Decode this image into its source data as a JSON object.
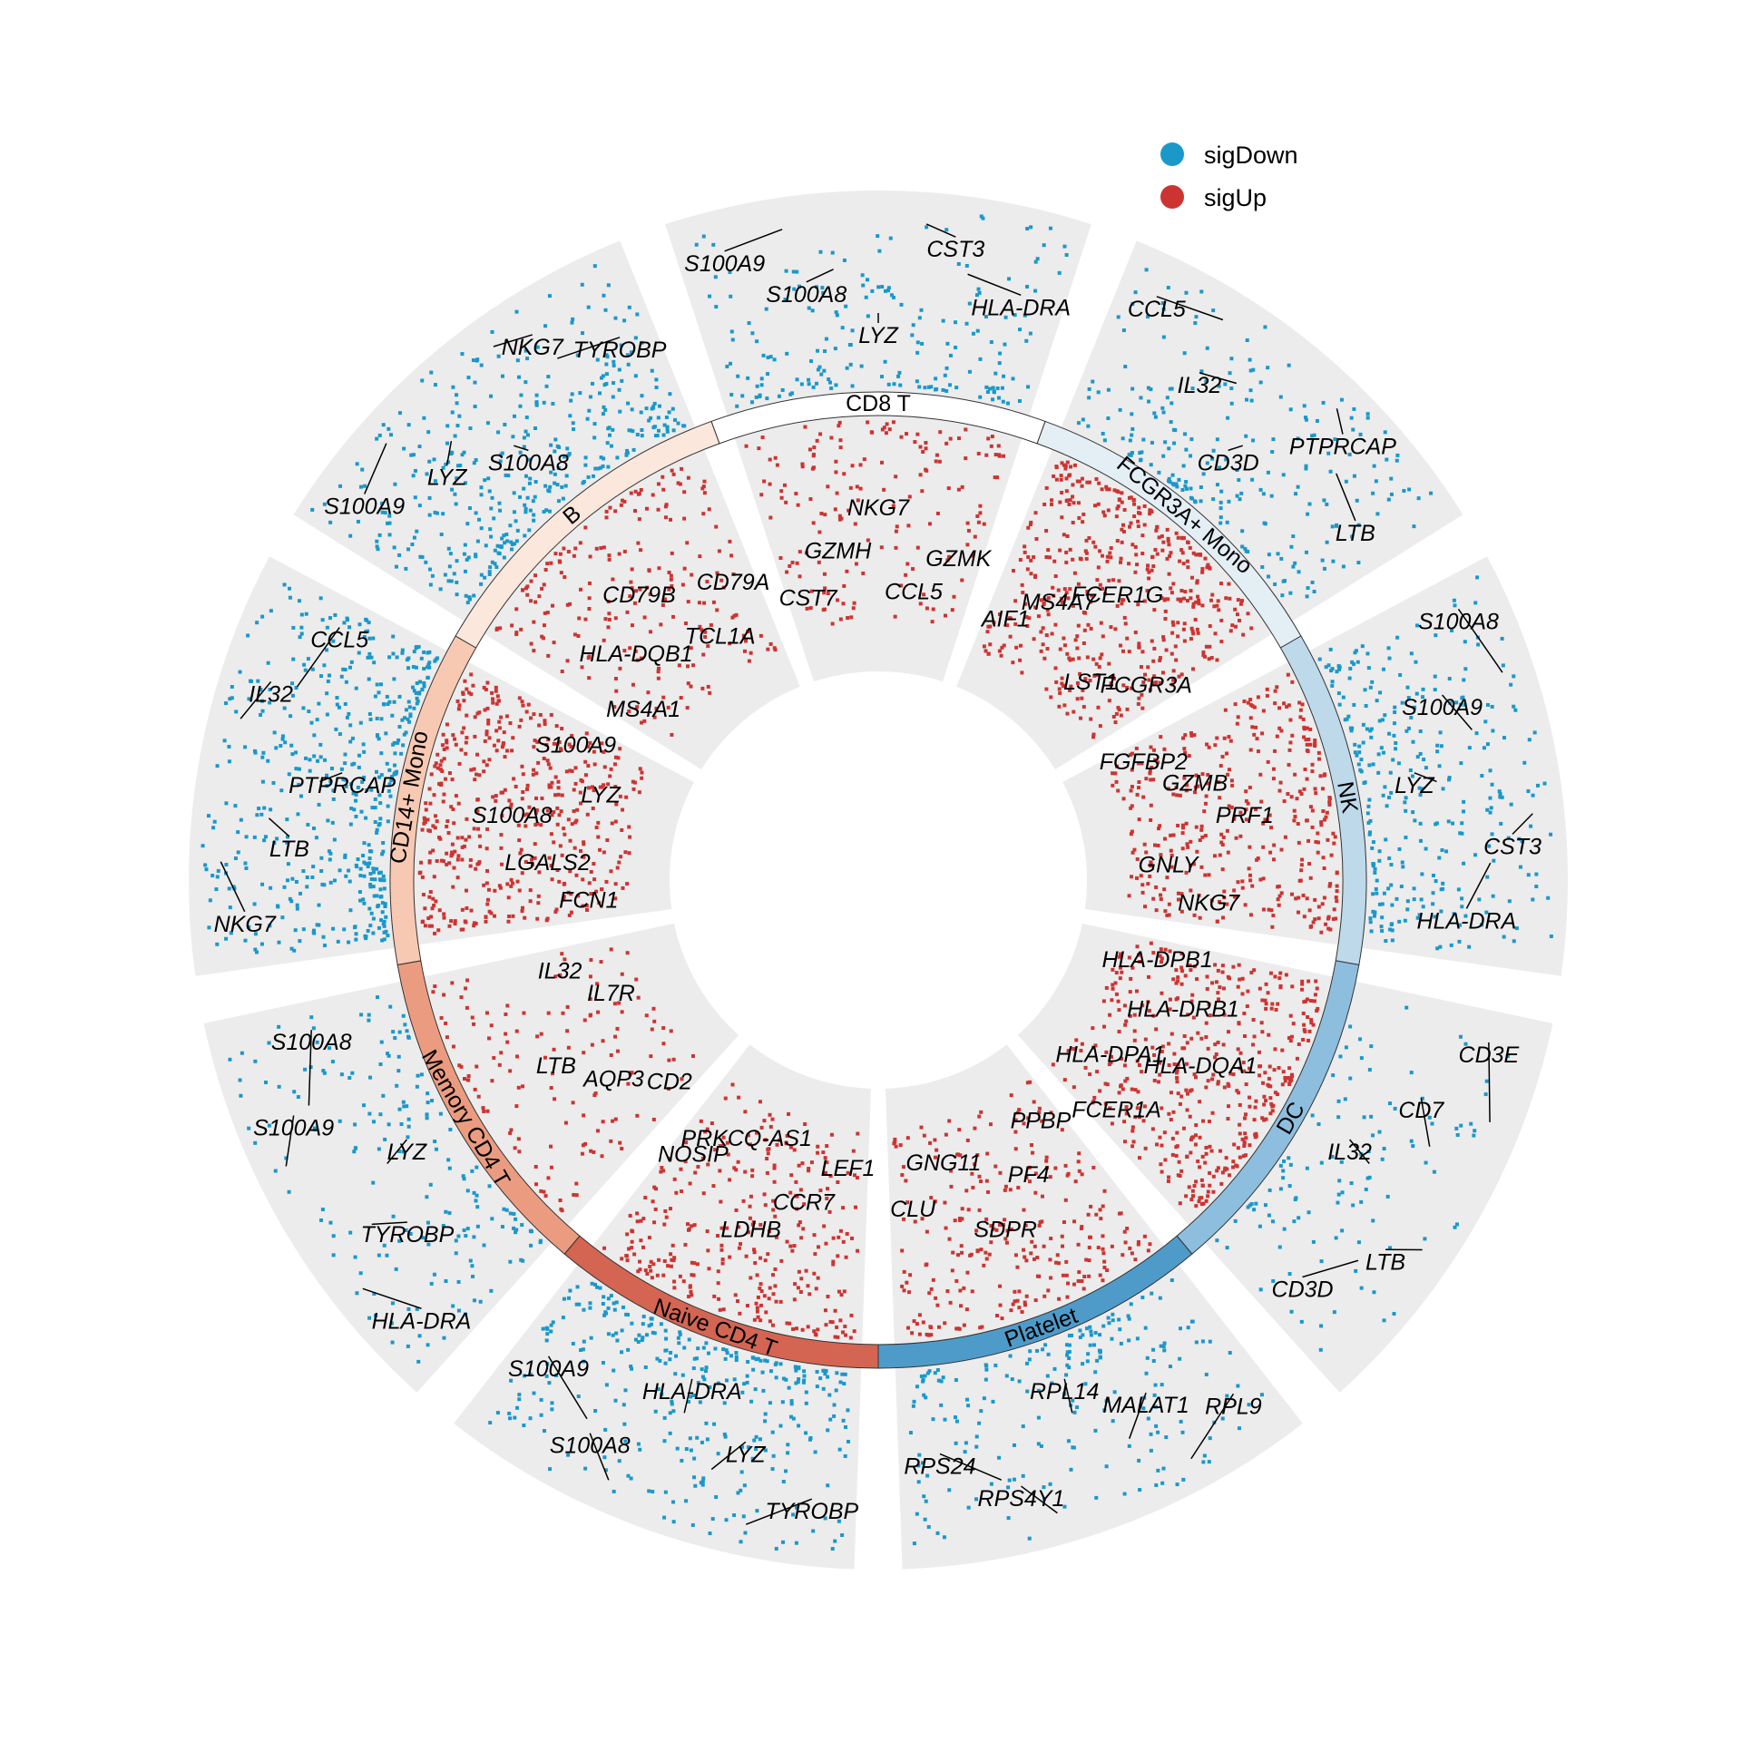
{
  "chart_data": {
    "type": "scatter",
    "subtype": "circular-volcano",
    "legend": {
      "placement": "top-right",
      "items": [
        {
          "label": "sigDown",
          "color": "#1A98CA"
        },
        {
          "label": "sigUp",
          "color": "#CC3432"
        }
      ]
    },
    "groups": [
      {
        "name": "CD8 T",
        "color": "#FFFFFF",
        "up_genes": [
          "CST7",
          "GZMH",
          "NKG7",
          "CCL5",
          "GZMK"
        ],
        "down_genes": [
          "S100A9",
          "S100A8",
          "LYZ",
          "CST3",
          "HLA-DRA"
        ],
        "n_up": 170,
        "n_down": 190
      },
      {
        "name": "FCGR3A+ Mono",
        "color": "#E4EEF5",
        "up_genes": [
          "AIF1",
          "MS4A7",
          "FCER1G",
          "LST1",
          "FCGR3A"
        ],
        "down_genes": [
          "CCL5",
          "IL32",
          "CD3D",
          "PTPRCAP",
          "LTB"
        ],
        "n_up": 470,
        "n_down": 230
      },
      {
        "name": "NK",
        "color": "#BDD9EA",
        "up_genes": [
          "FGFBP2",
          "GZMB",
          "PRF1",
          "GNLY",
          "NKG7"
        ],
        "down_genes": [
          "S100A8",
          "S100A9",
          "LYZ",
          "CST3",
          "HLA-DRA"
        ],
        "n_up": 380,
        "n_down": 300
      },
      {
        "name": "DC",
        "color": "#8EBEDE",
        "up_genes": [
          "HLA-DPB1",
          "HLA-DRB1",
          "HLA-DQA1",
          "HLA-DPA1",
          "FCER1A"
        ],
        "down_genes": [
          "CD3E",
          "CD7",
          "IL32",
          "LTB",
          "CD3D"
        ],
        "n_up": 440,
        "n_down": 110
      },
      {
        "name": "Platelet",
        "color": "#4E9BCA",
        "up_genes": [
          "PPBP",
          "PF4",
          "SDPR",
          "GNG11",
          "CLU"
        ],
        "down_genes": [
          "RPL9",
          "MALAT1",
          "RPL14",
          "RPS4Y1",
          "RPS24"
        ],
        "n_up": 270,
        "n_down": 210
      },
      {
        "name": "Naive CD4 T",
        "color": "#D36552",
        "up_genes": [
          "LEF1",
          "CCR7",
          "LDHB",
          "PRKCQ-AS1",
          "NOSIP"
        ],
        "down_genes": [
          "TYROBP",
          "LYZ",
          "HLA-DRA",
          "S100A8",
          "S100A9"
        ],
        "n_up": 310,
        "n_down": 320
      },
      {
        "name": "Memory CD4 T",
        "color": "#EB9C80",
        "up_genes": [
          "CD2",
          "AQP3",
          "LTB",
          "IL7R",
          "IL32"
        ],
        "down_genes": [
          "HLA-DRA",
          "TYROBP",
          "LYZ",
          "S100A9",
          "S100A8"
        ],
        "n_up": 140,
        "n_down": 180
      },
      {
        "name": "CD14+ Mono",
        "color": "#F8C9B2",
        "up_genes": [
          "FCN1",
          "LGALS2",
          "S100A8",
          "LYZ",
          "S100A9"
        ],
        "down_genes": [
          "NKG7",
          "LTB",
          "PTPRCAP",
          "IL32",
          "CCL5"
        ],
        "n_up": 460,
        "n_down": 470
      },
      {
        "name": "B",
        "color": "#FCE7DC",
        "up_genes": [
          "MS4A1",
          "HLA-DQB1",
          "CD79B",
          "TCL1A",
          "CD79A"
        ],
        "down_genes": [
          "S100A9",
          "LYZ",
          "S100A8",
          "NKG7",
          "TYROBP"
        ],
        "n_up": 220,
        "n_down": 380
      }
    ]
  }
}
